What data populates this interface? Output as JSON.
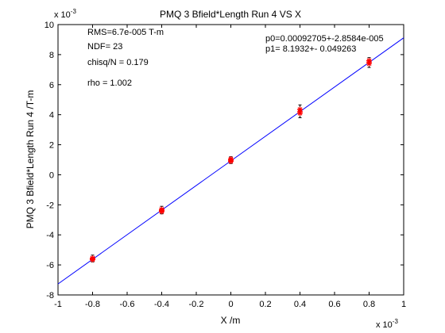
{
  "chart_data": {
    "type": "scatter",
    "title": "PMQ 3 Bfield*Length Run 4 VS X",
    "xlabel": "X /m",
    "ylabel": "PMQ 3 Bfield*Length Run 4 /T-m",
    "x_multiplier": "x 10",
    "x_multiplier_exp": "-3",
    "y_multiplier": "x 10",
    "y_multiplier_exp": "-3",
    "xlim": [
      -1,
      1
    ],
    "ylim": [
      -8,
      10
    ],
    "xticks": [
      -1,
      -0.8,
      -0.6,
      -0.4,
      -0.2,
      0,
      0.2,
      0.4,
      0.6,
      0.8,
      1
    ],
    "xtick_labels": [
      "-1",
      "-0.8",
      "-0.6",
      "-0.4",
      "-0.2",
      "0",
      "0.2",
      "0.4",
      "0.6",
      "0.8",
      "1"
    ],
    "yticks": [
      -8,
      -6,
      -4,
      -2,
      0,
      2,
      4,
      6,
      8,
      10
    ],
    "ytick_labels": [
      "-8",
      "-6",
      "-4",
      "-2",
      "0",
      "2",
      "4",
      "6",
      "8",
      "10"
    ],
    "grid": false,
    "series": [
      {
        "marker": "star",
        "color": "#ff0000",
        "points": [
          {
            "x": -0.8,
            "y": -5.55
          },
          {
            "x": -0.8,
            "y": -5.6
          },
          {
            "x": -0.8,
            "y": -5.65
          },
          {
            "x": -0.4,
            "y": -2.3
          },
          {
            "x": -0.4,
            "y": -2.38
          },
          {
            "x": -0.4,
            "y": -2.45
          },
          {
            "x": 0,
            "y": 0.9
          },
          {
            "x": 0,
            "y": 0.97
          },
          {
            "x": 0,
            "y": 1.05
          },
          {
            "x": 0.4,
            "y": 4.1
          },
          {
            "x": 0.4,
            "y": 4.2
          },
          {
            "x": 0.4,
            "y": 4.35
          },
          {
            "x": 0.8,
            "y": 7.4
          },
          {
            "x": 0.8,
            "y": 7.5
          },
          {
            "x": 0.8,
            "y": 7.6
          }
        ],
        "error_bars": [
          {
            "x": -0.8,
            "low": -5.8,
            "high": -5.35
          },
          {
            "x": -0.4,
            "low": -2.6,
            "high": -2.1
          },
          {
            "x": 0,
            "low": 0.75,
            "high": 1.2
          },
          {
            "x": 0.4,
            "low": 3.8,
            "high": 4.65
          },
          {
            "x": 0.8,
            "low": 7.15,
            "high": 7.8
          }
        ]
      }
    ],
    "fit_line": {
      "color": "#0000ff",
      "p0": 0.92705,
      "p1": 8.1932
    },
    "annotations": {
      "rms": "RMS=6.7e-005 T-m",
      "ndf": "NDF=    23",
      "chisq": "chisq/N = 0.179",
      "rho": "rho     =  1.002",
      "p0": "p0=0.00092705+-2.8584e-005",
      "p1": "p1=    8.1932+- 0.049263"
    }
  }
}
